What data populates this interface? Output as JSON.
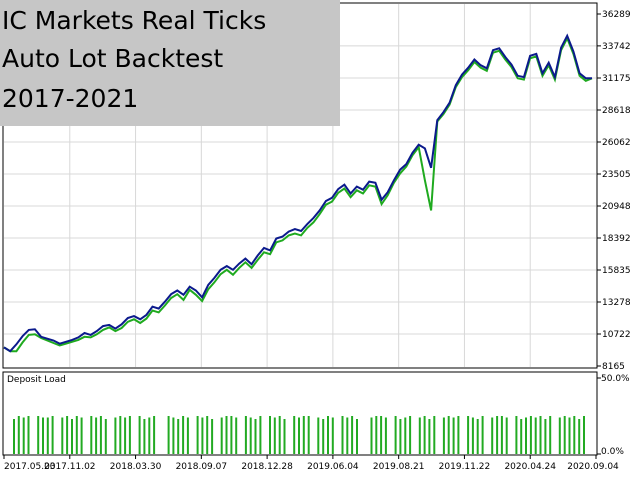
{
  "title_lines": [
    "IC Markets Real Ticks",
    "Auto Lot Backtest",
    "2017-2021"
  ],
  "colors": {
    "balance": "#0b1a8c",
    "equity": "#1faa1f",
    "deposit_load": "#22aa22",
    "grid": "#d8d8d8",
    "title_bg": "#c6c6c6"
  },
  "chart_data": [
    {
      "type": "line",
      "title": "",
      "xlabel": "",
      "ylabel": "",
      "ylim": [
        8165,
        36289
      ],
      "y_ticks": [
        "36289",
        "33742",
        "31175",
        "28618",
        "26062",
        "23505",
        "20948",
        "18392",
        "15835",
        "13278",
        "10722",
        "8165"
      ],
      "x_ticks": [
        "2017.05.03",
        "2017.11.02",
        "2018.03.30",
        "2018.09.07",
        "2018.12.28",
        "2019.06.04",
        "2019.08.21",
        "2019.11.22",
        "2020.04.24",
        "2020.09.04"
      ],
      "grid": true,
      "series": [
        {
          "name": "",
          "values": [
            9650,
            9350,
            9900,
            10550,
            11050,
            11100,
            10500,
            10350,
            10200,
            9950,
            10100,
            10250,
            10450,
            10800,
            10650,
            10950,
            11350,
            11450,
            11150,
            11500,
            12000,
            12150,
            11900,
            12250,
            12900,
            12750,
            13300,
            13900,
            14200,
            13850,
            14500,
            14200,
            13650,
            14650,
            15200,
            15850,
            16150,
            15850,
            16350,
            16750,
            16300,
            17000,
            17600,
            17400,
            18350,
            18500,
            18900,
            19100,
            18950,
            19500,
            20000,
            20600,
            21350,
            21600,
            22300,
            22650,
            21950,
            22500,
            22250,
            22900,
            22800,
            21450,
            22050,
            23000,
            23850,
            24300,
            25200,
            25850,
            25550,
            24000,
            27800,
            28450,
            29200,
            30600,
            31450,
            32000,
            32650,
            32200,
            31950,
            33400,
            33550,
            32850,
            32250,
            31350,
            31250,
            32950,
            33100,
            31550,
            32400,
            31250,
            33600,
            34550,
            33300,
            31550,
            31150,
            31150
          ]
        },
        {
          "name": "",
          "values": [
            9650,
            9350,
            9350,
            10050,
            10650,
            10700,
            10400,
            10200,
            10000,
            9800,
            9950,
            10100,
            10250,
            10500,
            10450,
            10700,
            11050,
            11250,
            10950,
            11200,
            11700,
            11900,
            11600,
            11950,
            12600,
            12450,
            13000,
            13600,
            13900,
            13450,
            14250,
            13850,
            13350,
            14300,
            14850,
            15500,
            15850,
            15450,
            16000,
            16450,
            16000,
            16650,
            17250,
            17100,
            18050,
            18200,
            18600,
            18750,
            18600,
            19200,
            19650,
            20300,
            21050,
            21300,
            22000,
            22350,
            21650,
            22200,
            21950,
            22600,
            22500,
            21100,
            21800,
            22800,
            23550,
            24100,
            25000,
            25650,
            23000,
            20600,
            27700,
            28300,
            29050,
            30450,
            31250,
            31800,
            32450,
            32000,
            31750,
            33200,
            33350,
            32650,
            32050,
            31150,
            31050,
            32750,
            32900,
            31350,
            32200,
            31050,
            33400,
            34350,
            33100,
            31350,
            30950,
            31150
          ]
        }
      ]
    },
    {
      "type": "bar",
      "title": "Deposit Load",
      "ylim": [
        0,
        50
      ],
      "y_ticks": [
        "50.0%",
        "0.0%"
      ],
      "values": [
        23,
        25,
        24,
        25,
        0,
        25,
        24,
        24,
        25,
        0,
        24,
        25,
        23,
        25,
        24,
        0,
        25,
        24,
        25,
        23,
        0,
        24,
        25,
        24,
        25,
        0,
        25,
        23,
        24,
        25,
        0,
        0,
        25,
        24,
        23,
        25,
        24,
        0,
        25,
        24,
        25,
        23,
        0,
        24,
        25,
        25,
        24,
        0,
        25,
        24,
        23,
        25,
        0,
        25,
        24,
        25,
        23,
        0,
        25,
        24,
        25,
        25,
        0,
        24,
        23,
        25,
        24,
        0,
        25,
        24,
        25,
        23,
        0,
        0,
        24,
        25,
        25,
        24,
        0,
        25,
        23,
        24,
        25,
        0,
        24,
        25,
        23,
        25,
        0,
        24,
        25,
        24,
        25,
        0,
        25,
        24,
        23,
        25,
        0,
        24,
        25,
        25,
        24,
        0,
        25,
        23,
        24,
        25,
        24,
        25,
        23,
        25,
        0,
        24,
        25,
        24,
        25,
        23,
        25
      ]
    }
  ]
}
